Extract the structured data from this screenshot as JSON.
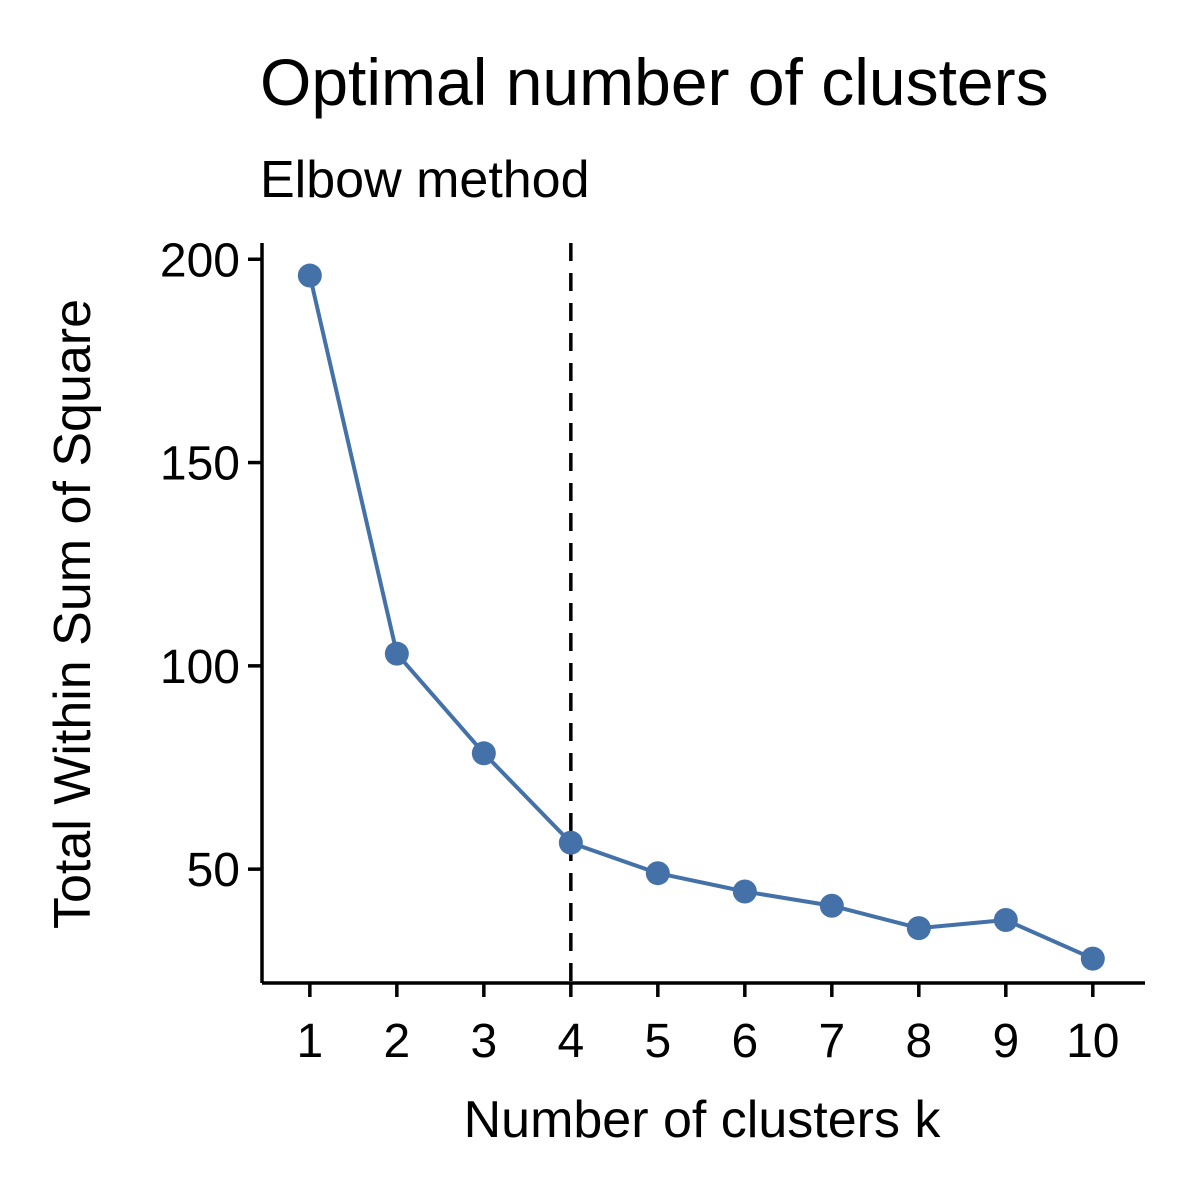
{
  "chart_data": {
    "type": "line",
    "title": "Optimal number of clusters",
    "subtitle": "Elbow method",
    "xlabel": "Number of clusters k",
    "ylabel": "Total Within Sum of Square",
    "x": [
      1,
      2,
      3,
      4,
      5,
      6,
      7,
      8,
      9,
      10
    ],
    "x_tick_labels": [
      "1",
      "2",
      "3",
      "4",
      "5",
      "6",
      "7",
      "8",
      "9",
      "10"
    ],
    "y_ticks": [
      50,
      100,
      150,
      200
    ],
    "y_tick_labels": [
      "50",
      "100",
      "150",
      "200"
    ],
    "xlim": [
      0.45,
      10.6
    ],
    "ylim": [
      22,
      204
    ],
    "series": [
      {
        "values": [
          196,
          103,
          78.5,
          56.5,
          49,
          44.5,
          41,
          35.5,
          37.5,
          28
        ],
        "color": "#4472A8"
      }
    ],
    "vertical_line": {
      "x": 4,
      "style": "dashed",
      "color": "#000000"
    },
    "grid": false,
    "legend": "none"
  }
}
